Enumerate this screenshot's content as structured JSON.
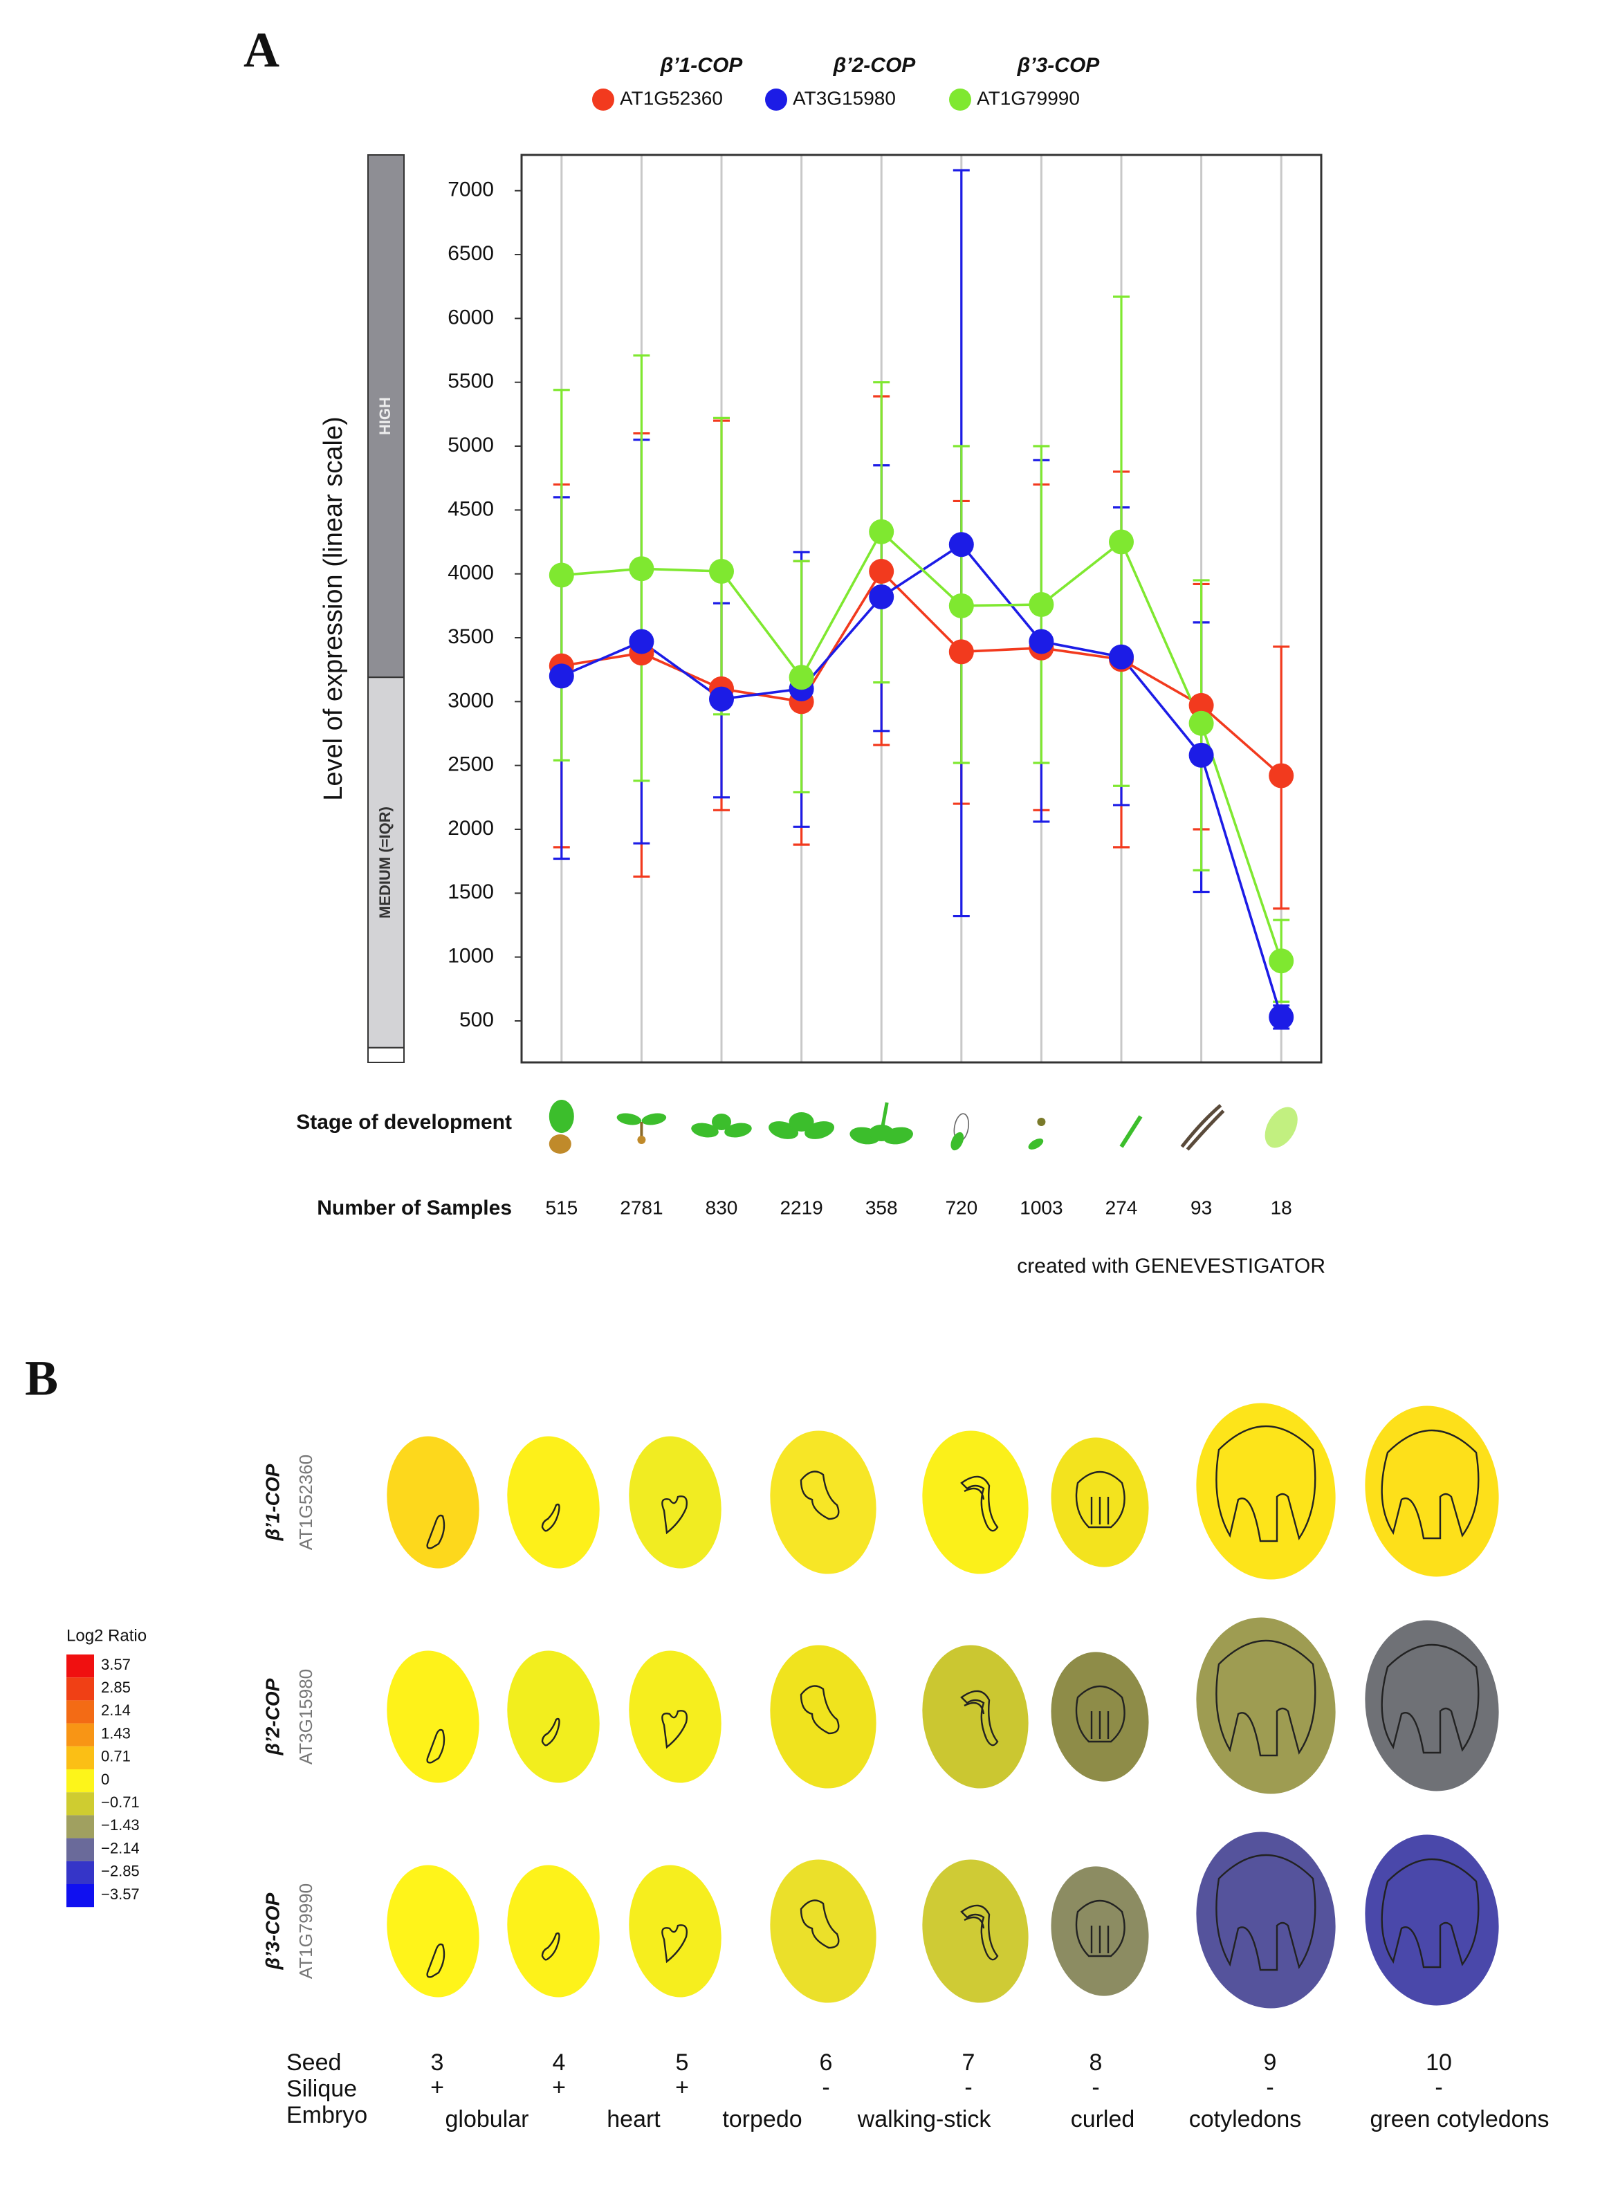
{
  "chart_data": {
    "type": "line",
    "panel_label": "A",
    "y_label": "Level of expression (linear scale)",
    "x_label": "Stage of development",
    "samples_label": "Number of Samples",
    "samples": [
      515,
      2781,
      830,
      2219,
      358,
      720,
      1003,
      274,
      93,
      18
    ],
    "credit": "created with GENEVESTIGATOR",
    "categories": [
      null,
      null,
      null,
      null,
      null,
      null,
      null,
      null,
      null,
      null
    ],
    "level_bands": [
      {
        "label": "HIGH",
        "from": 3190,
        "to": 7280,
        "color": "#8e8e94"
      },
      {
        "label": "MEDIUM (=IQR)",
        "from": 290,
        "to": 3190,
        "color": "#d3d3d6"
      }
    ],
    "ylim": [
      175,
      7280
    ],
    "yticks": [
      500,
      1000,
      1500,
      2000,
      2500,
      3000,
      3500,
      4000,
      4500,
      5000,
      5500,
      6000,
      6500,
      7000
    ],
    "x_grid": true,
    "series": [
      {
        "gene": "β’1-COP",
        "name": "AT1G52360",
        "color": "#f23a1e",
        "values": [
          3280,
          3380,
          3100,
          3000,
          4020,
          3390,
          3420,
          3330,
          2970,
          2420
        ],
        "upper": [
          4700,
          5100,
          5200,
          4100,
          5390,
          4570,
          4700,
          4800,
          3920,
          3430
        ],
        "lower": [
          1860,
          1630,
          2150,
          1880,
          2660,
          2200,
          2150,
          1860,
          2000,
          1380
        ]
      },
      {
        "gene": "β’2-COP",
        "name": "AT3G15980",
        "color": "#1c1ce6",
        "values": [
          3200,
          3470,
          3020,
          3100,
          3820,
          4230,
          3470,
          3350,
          2580,
          530
        ],
        "upper": [
          4600,
          5050,
          3770,
          4170,
          4850,
          7160,
          4890,
          4520,
          3620,
          620
        ],
        "lower": [
          1770,
          1890,
          2250,
          2020,
          2770,
          1320,
          2060,
          2190,
          1510,
          440
        ]
      },
      {
        "gene": "β’3-COP",
        "name": "AT1G79990",
        "color": "#7fe830",
        "values": [
          3990,
          4040,
          4020,
          3190,
          4330,
          3750,
          3760,
          4250,
          2830,
          970
        ],
        "upper": [
          5440,
          5710,
          5220,
          4100,
          5500,
          5000,
          5000,
          6170,
          3950,
          1290
        ],
        "lower": [
          2540,
          2380,
          2900,
          2290,
          3150,
          2520,
          2520,
          2340,
          1680,
          650
        ]
      }
    ]
  },
  "panel_b": {
    "panel_label": "B",
    "rows": [
      {
        "gene": "β’1-COP",
        "id": "AT1G52360",
        "colors": [
          "#fdd81c",
          "#fdf01a",
          "#f1ec22",
          "#f7e626",
          "#fbf01a",
          "#f3e31e",
          "#fde41a",
          "#fde01a"
        ]
      },
      {
        "gene": "β’2-COP",
        "id": "AT3G15980",
        "colors": [
          "#fef21a",
          "#f2ee1e",
          "#f6ee1e",
          "#f0e31e",
          "#cbc731",
          "#8e8c48",
          "#9e9c52",
          "#6f7176"
        ]
      },
      {
        "gene": "β’3-COP",
        "id": "AT1G79990",
        "colors": [
          "#fff41a",
          "#fdf21a",
          "#f6ee1e",
          "#ebe02a",
          "#cfcb35",
          "#8c8c62",
          "#55539c",
          "#4a48aa"
        ]
      }
    ],
    "legend": {
      "title": "Log2 Ratio",
      "ticks": [
        3.57,
        2.85,
        2.14,
        1.43,
        0.71,
        0,
        {
          "value": -0.71,
          "label": "−0.71"
        },
        {
          "value": -1.43,
          "label": "−1.43"
        },
        {
          "value": -2.14,
          "label": "−2.14"
        },
        {
          "value": -2.85,
          "label": "−2.85"
        },
        {
          "value": -3.57,
          "label": "−3.57"
        }
      ],
      "colors": [
        "#f01010",
        "#f04015",
        "#f36b15",
        "#f89515",
        "#fbbf15",
        "#fdf51a",
        "#cfcc30",
        "#a0a060",
        "#6a6a9a",
        "#3535c8",
        "#1010f0"
      ]
    },
    "row_titles": [
      "Seed",
      "Silique",
      "Embryo"
    ],
    "seed": [
      3,
      4,
      5,
      6,
      7,
      8,
      9,
      10
    ],
    "silique": [
      "+",
      "+",
      "+",
      "-",
      "-",
      "-",
      "-",
      "-"
    ],
    "embryo": [
      "globular",
      "heart",
      "torpedo",
      "walking-stick",
      "curled",
      "cotyledons",
      "green cotyledons"
    ]
  }
}
